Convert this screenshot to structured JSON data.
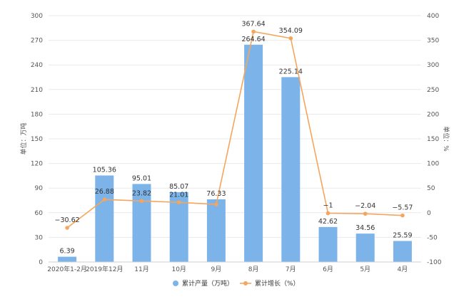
{
  "chart_data": {
    "type": "bar",
    "categories": [
      "2020年1-2月",
      "2019年12月",
      "11月",
      "10月",
      "9月",
      "8月",
      "7月",
      "6月",
      "5月",
      "4月"
    ],
    "series": [
      {
        "name": "累计产量（万吨）",
        "kind": "bar",
        "axis": "left",
        "color": "#7cb4ea",
        "values": [
          6.39,
          105.36,
          95.01,
          85.07,
          76.33,
          264.64,
          225.14,
          42.62,
          34.56,
          25.59
        ],
        "labels": [
          "6.39",
          "105.36",
          "95.01",
          "85.07",
          "76.33",
          "264.64",
          "225.14",
          "42.62",
          "34.56",
          "25.59"
        ]
      },
      {
        "name": "累计增长（%）",
        "kind": "line",
        "axis": "right",
        "color": "#f5a55d",
        "values": [
          -30.62,
          26.88,
          23.82,
          21.01,
          17.0,
          367.64,
          354.09,
          -1,
          -2.04,
          -5.57
        ],
        "labels": [
          "-30.62",
          "26.88",
          "23.82",
          "21.01",
          "",
          "367.64",
          "354.09",
          "-1",
          "-2.04",
          "-5.57"
        ]
      }
    ],
    "ylabel_left": "单位：万吨",
    "ylabel_right": "单位：%",
    "ylim_left": [
      0,
      300
    ],
    "ylim_right": [
      -100,
      400
    ],
    "yticks_left": [
      "0",
      "30",
      "60",
      "90",
      "120",
      "150",
      "180",
      "210",
      "240",
      "270",
      "300"
    ],
    "yticks_right": [
      "-100",
      "-50",
      "0",
      "50",
      "100",
      "150",
      "200",
      "250",
      "300",
      "350",
      "400"
    ],
    "grid": true,
    "legend_position": "bottom"
  }
}
